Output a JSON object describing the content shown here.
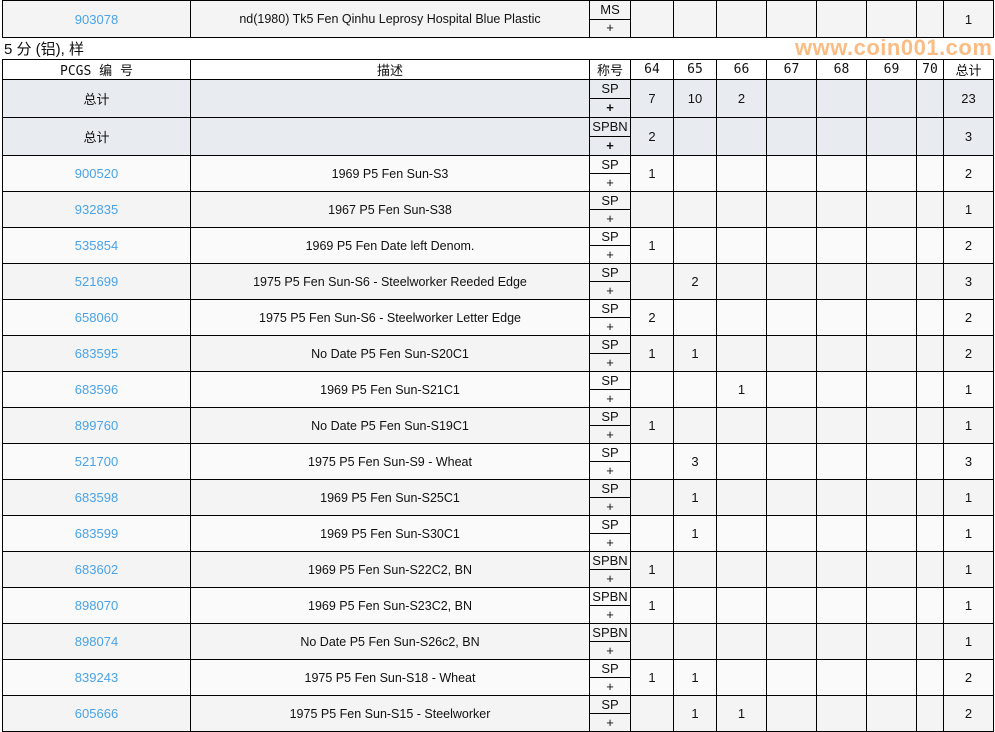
{
  "top_row": {
    "pcgs": "903078",
    "description": "nd(1980) Tk5 Fen Qinhu Leprosy Hospital Blue Plastic",
    "designation": "MS",
    "plus": "+",
    "grades": [
      "",
      "",
      "",
      "",
      "",
      "",
      ""
    ],
    "total": "1"
  },
  "section_title": "5 分 (铝), 样",
  "headers": {
    "pcgs": "PCGS 编 号",
    "description": "描述",
    "designation": "称号",
    "grades": [
      "64",
      "65",
      "66",
      "67",
      "68",
      "69",
      "70"
    ],
    "total": "总计"
  },
  "total_rows": [
    {
      "label": "总计",
      "designation": "SP",
      "plus": "+",
      "grades": [
        "7",
        "10",
        "2",
        "",
        "",
        "",
        ""
      ],
      "total": "23"
    },
    {
      "label": "总计",
      "designation": "SPBN",
      "plus": "+",
      "grades": [
        "2",
        "",
        "",
        "",
        "",
        "",
        ""
      ],
      "total": "3"
    }
  ],
  "rows": [
    {
      "pcgs": "900520",
      "description": "1969 P5 Fen Sun-S3",
      "designation": "SP",
      "plus": "+",
      "grades": [
        "1",
        "",
        "",
        "",
        "",
        "",
        ""
      ],
      "total": "2"
    },
    {
      "pcgs": "932835",
      "description": "1967 P5 Fen Sun-S38",
      "designation": "SP",
      "plus": "+",
      "grades": [
        "",
        "",
        "",
        "",
        "",
        "",
        ""
      ],
      "total": "1"
    },
    {
      "pcgs": "535854",
      "description": "1969 P5 Fen Date left Denom.",
      "designation": "SP",
      "plus": "+",
      "grades": [
        "1",
        "",
        "",
        "",
        "",
        "",
        ""
      ],
      "total": "2"
    },
    {
      "pcgs": "521699",
      "description": "1975 P5 Fen Sun-S6 - Steelworker Reeded Edge",
      "designation": "SP",
      "plus": "+",
      "grades": [
        "",
        "2",
        "",
        "",
        "",
        "",
        ""
      ],
      "total": "3"
    },
    {
      "pcgs": "658060",
      "description": "1975 P5 Fen Sun-S6 - Steelworker Letter Edge",
      "designation": "SP",
      "plus": "+",
      "grades": [
        "2",
        "",
        "",
        "",
        "",
        "",
        ""
      ],
      "total": "2"
    },
    {
      "pcgs": "683595",
      "description": "No Date P5 Fen Sun-S20C1",
      "designation": "SP",
      "plus": "+",
      "grades": [
        "1",
        "1",
        "",
        "",
        "",
        "",
        ""
      ],
      "total": "2"
    },
    {
      "pcgs": "683596",
      "description": "1969 P5 Fen Sun-S21C1",
      "designation": "SP",
      "plus": "+",
      "grades": [
        "",
        "",
        "1",
        "",
        "",
        "",
        ""
      ],
      "total": "1"
    },
    {
      "pcgs": "899760",
      "description": "No Date P5 Fen Sun-S19C1",
      "designation": "SP",
      "plus": "+",
      "grades": [
        "1",
        "",
        "",
        "",
        "",
        "",
        ""
      ],
      "total": "1"
    },
    {
      "pcgs": "521700",
      "description": "1975 P5 Fen Sun-S9 - Wheat",
      "designation": "SP",
      "plus": "+",
      "grades": [
        "",
        "3",
        "",
        "",
        "",
        "",
        ""
      ],
      "total": "3"
    },
    {
      "pcgs": "683598",
      "description": "1969 P5 Fen Sun-S25C1",
      "designation": "SP",
      "plus": "+",
      "grades": [
        "",
        "1",
        "",
        "",
        "",
        "",
        ""
      ],
      "total": "1"
    },
    {
      "pcgs": "683599",
      "description": "1969 P5 Fen Sun-S30C1",
      "designation": "SP",
      "plus": "+",
      "grades": [
        "",
        "1",
        "",
        "",
        "",
        "",
        ""
      ],
      "total": "1"
    },
    {
      "pcgs": "683602",
      "description": "1969 P5 Fen Sun-S22C2, BN",
      "designation": "SPBN",
      "plus": "+",
      "grades": [
        "1",
        "",
        "",
        "",
        "",
        "",
        ""
      ],
      "total": "1"
    },
    {
      "pcgs": "898070",
      "description": "1969 P5 Fen Sun-S23C2, BN",
      "designation": "SPBN",
      "plus": "+",
      "grades": [
        "1",
        "",
        "",
        "",
        "",
        "",
        ""
      ],
      "total": "1"
    },
    {
      "pcgs": "898074",
      "description": "No Date P5 Fen Sun-S26c2, BN",
      "designation": "SPBN",
      "plus": "+",
      "grades": [
        "",
        "",
        "",
        "",
        "",
        "",
        ""
      ],
      "total": "1"
    },
    {
      "pcgs": "839243",
      "description": "1975 P5 Fen Sun-S18 - Wheat",
      "designation": "SP",
      "plus": "+",
      "grades": [
        "1",
        "1",
        "",
        "",
        "",
        "",
        ""
      ],
      "total": "2"
    },
    {
      "pcgs": "605666",
      "description": "1975 P5 Fen Sun-S15 - Steelworker",
      "designation": "SP",
      "plus": "+",
      "grades": [
        "",
        "1",
        "1",
        "",
        "",
        "",
        ""
      ],
      "total": "2"
    }
  ],
  "watermark": "www.coin001.com"
}
